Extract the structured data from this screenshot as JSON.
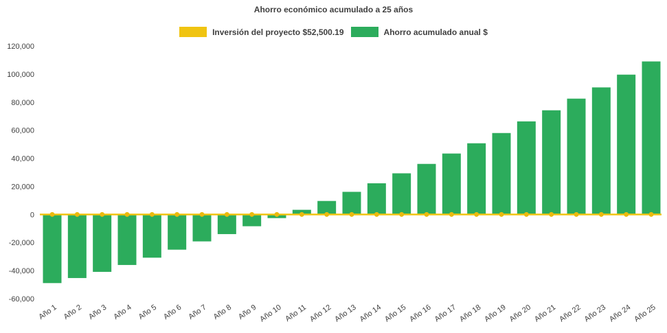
{
  "title": "Ahorro económico acumulado a 25 años",
  "legend": {
    "investment": {
      "label": "Inversión del proyecto $52,500.19",
      "color": "#f0c411"
    },
    "savings": {
      "label": "Ahorro acumulado anual $",
      "color": "#2cac5c"
    }
  },
  "chart_data": {
    "type": "bar",
    "title": "Ahorro económico acumulado a 25 años",
    "categories": [
      "Año 1",
      "Año 2",
      "Año 3",
      "Año 4",
      "Año 5",
      "Año 6",
      "Año 7",
      "Año 8",
      "Año 9",
      "Año 10",
      "Año 11",
      "Año 12",
      "Año 13",
      "Año 14",
      "Año 15",
      "Año 16",
      "Año 17",
      "Año 18",
      "Año 19",
      "Año 20",
      "Año 21",
      "Año 22",
      "Año 23",
      "Año 24",
      "Año 25"
    ],
    "series": [
      {
        "name": "Inversión del proyecto $52,500.19",
        "type": "line",
        "color": "#f0c411",
        "marker_color": "#eaba0e",
        "values": [
          0,
          0,
          0,
          0,
          0,
          0,
          0,
          0,
          0,
          0,
          0,
          0,
          0,
          0,
          0,
          0,
          0,
          0,
          0,
          0,
          0,
          0,
          0,
          0,
          0
        ]
      },
      {
        "name": "Ahorro acumulado anual $",
        "type": "bar",
        "color": "#2cac5c",
        "values": [
          -48900,
          -45300,
          -40900,
          -36000,
          -30800,
          -25100,
          -19200,
          -14000,
          -8400,
          -2600,
          3300,
          9600,
          16100,
          22200,
          29300,
          36000,
          43400,
          50700,
          58000,
          66300,
          74200,
          82500,
          90500,
          99600,
          109000
        ]
      }
    ],
    "ylim": [
      -60000,
      120000
    ],
    "ytick_step": 20000,
    "yticks": [
      {
        "value": 120000,
        "label": "120,000"
      },
      {
        "value": 100000,
        "label": "100,000"
      },
      {
        "value": 80000,
        "label": "80,000"
      },
      {
        "value": 60000,
        "label": "60,000"
      },
      {
        "value": 40000,
        "label": "40,000"
      },
      {
        "value": 20000,
        "label": "20,000"
      },
      {
        "value": 0,
        "label": "0"
      },
      {
        "value": -20000,
        "label": "-20,000"
      },
      {
        "value": -40000,
        "label": "-40,000"
      },
      {
        "value": -60000,
        "label": "-60,000"
      }
    ],
    "grid": false,
    "legend_position": "top",
    "axis_text_color": "#404040",
    "x_label_rotation_deg": -35
  }
}
